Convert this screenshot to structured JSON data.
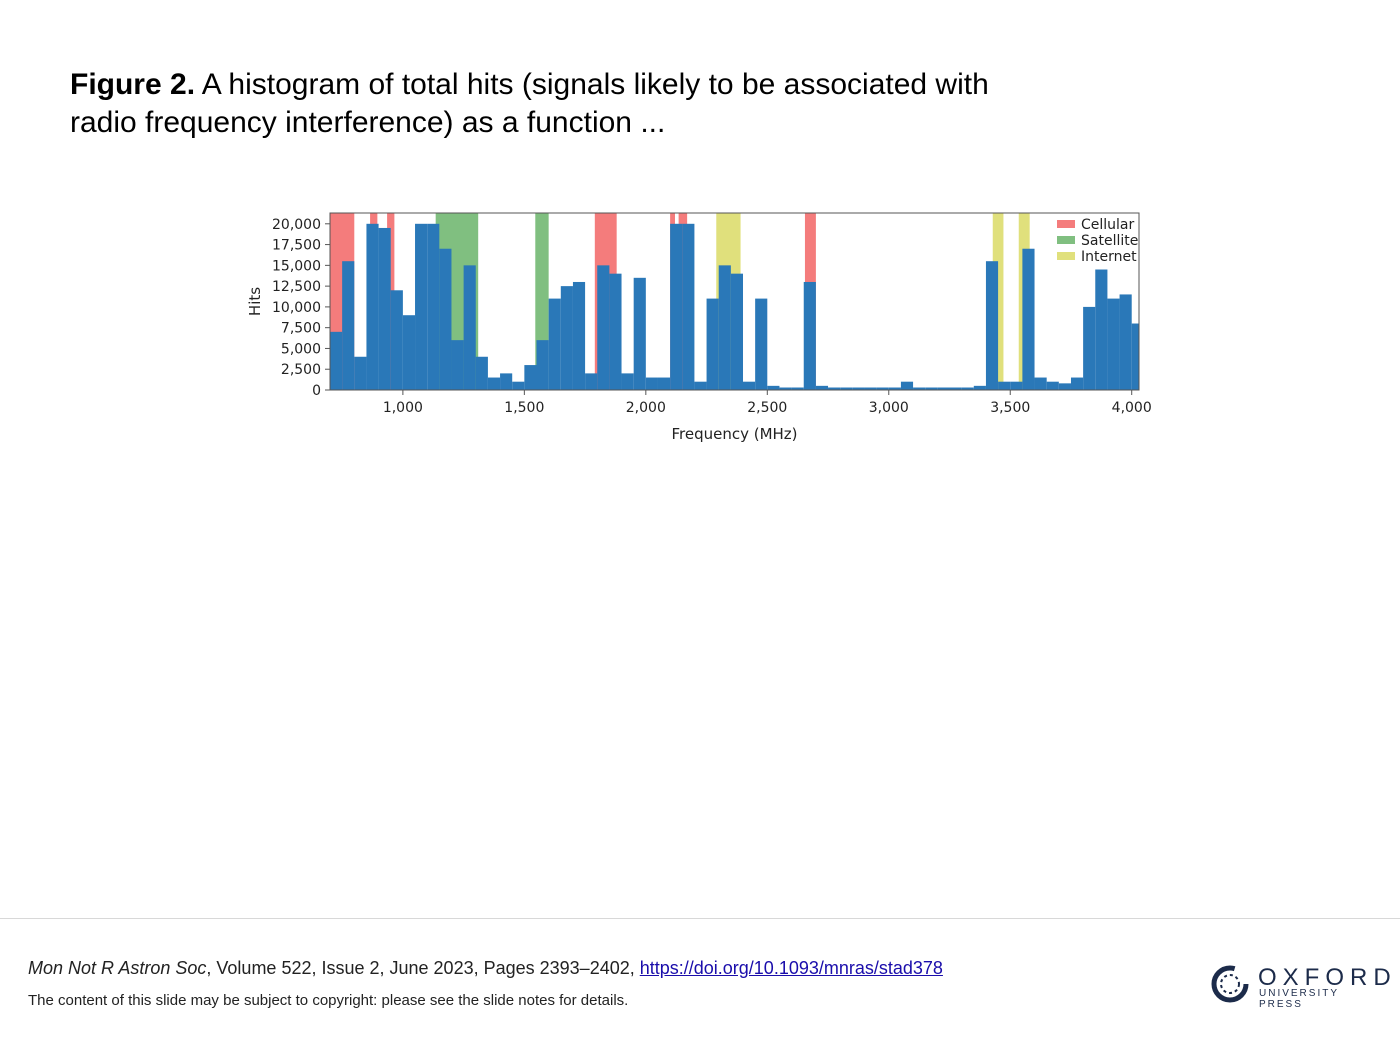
{
  "caption": {
    "label": "Figure 2.",
    "text": "A histogram of total hits (signals likely to be associated with radio frequency interference) as a function ..."
  },
  "chart_data": {
    "type": "histogram",
    "xlabel": "Frequency (MHz)",
    "ylabel": "Hits",
    "color": "#2a78b8",
    "xlim": [
      700,
      4030
    ],
    "ylim": [
      0,
      21300
    ],
    "xticks": [
      {
        "value": 1000,
        "label": "1,000"
      },
      {
        "value": 1500,
        "label": "1,500"
      },
      {
        "value": 2000,
        "label": "2,000"
      },
      {
        "value": 2500,
        "label": "2,500"
      },
      {
        "value": 3000,
        "label": "3,000"
      },
      {
        "value": 3500,
        "label": "3,500"
      },
      {
        "value": 4000,
        "label": "4,000"
      }
    ],
    "yticks": [
      0,
      {
        "value": 2500,
        "label": "2,500"
      },
      {
        "value": 5000,
        "label": "5,000"
      },
      {
        "value": 7500,
        "label": "7,500"
      },
      {
        "value": 10000,
        "label": "10,000"
      },
      {
        "value": 12500,
        "label": "12,500"
      },
      {
        "value": 15000,
        "label": "15,000"
      },
      {
        "value": 17500,
        "label": "17,500"
      },
      {
        "value": 20000,
        "label": "20,000"
      }
    ],
    "bins": [
      700,
      750,
      800,
      850,
      900,
      950,
      1000,
      1050,
      1100,
      1150,
      1200,
      1250,
      1300,
      1350,
      1400,
      1450,
      1500,
      1550,
      1600,
      1650,
      1700,
      1750,
      1800,
      1850,
      1900,
      1950,
      2000,
      2050,
      2100,
      2150,
      2200,
      2250,
      2300,
      2350,
      2400,
      2450,
      2500,
      2550,
      2600,
      2650,
      2700,
      2750,
      2800,
      2850,
      2900,
      2950,
      3000,
      3050,
      3100,
      3150,
      3200,
      3250,
      3300,
      3350,
      3400,
      3450,
      3500,
      3550,
      3600,
      3650,
      3700,
      3750,
      3800,
      3850,
      3900,
      3950,
      4000,
      4030
    ],
    "counts": [
      7000,
      15500,
      4000,
      20000,
      19500,
      12000,
      9000,
      20000,
      20000,
      17000,
      6000,
      15000,
      4000,
      1500,
      2000,
      1000,
      3000,
      6000,
      11000,
      12500,
      13000,
      2000,
      15000,
      14000,
      2000,
      13500,
      1500,
      1500,
      20000,
      20000,
      1000,
      11000,
      15000,
      14000,
      1000,
      11000,
      500,
      300,
      300,
      13000,
      500,
      300,
      300,
      300,
      300,
      300,
      300,
      1000,
      300,
      300,
      300,
      300,
      300,
      500,
      15500,
      1000,
      1000,
      17000,
      1500,
      1000,
      800,
      1500,
      10000,
      14500,
      11000,
      11500,
      8000
    ],
    "bands": [
      {
        "name": "Cellular",
        "color": "#f47c7c",
        "ranges": [
          [
            700,
            800
          ],
          [
            865,
            895
          ],
          [
            935,
            965
          ],
          [
            1790,
            1880
          ],
          [
            2100,
            2120
          ],
          [
            2135,
            2170
          ],
          [
            2655,
            2700
          ]
        ]
      },
      {
        "name": "Satellite",
        "color": "#80bf80",
        "ranges": [
          [
            1135,
            1310
          ],
          [
            1545,
            1600
          ]
        ]
      },
      {
        "name": "Internet",
        "color": "#e0e07c",
        "ranges": [
          [
            2290,
            2390
          ],
          [
            3428,
            3472
          ],
          [
            3535,
            3580
          ]
        ]
      }
    ],
    "legend": "upper right"
  },
  "footer": {
    "journal": "Mon Not R Astron Soc",
    "details": ", Volume 522, Issue 2, June 2023, Pages 2393–2402, ",
    "doi": "https://doi.org/10.1093/mnras/stad378",
    "notice": "The content of this slide may be subject to copyright: please see the slide notes for details."
  },
  "logo": {
    "name": "OXFORD",
    "subtitle": "UNIVERSITY PRESS"
  }
}
